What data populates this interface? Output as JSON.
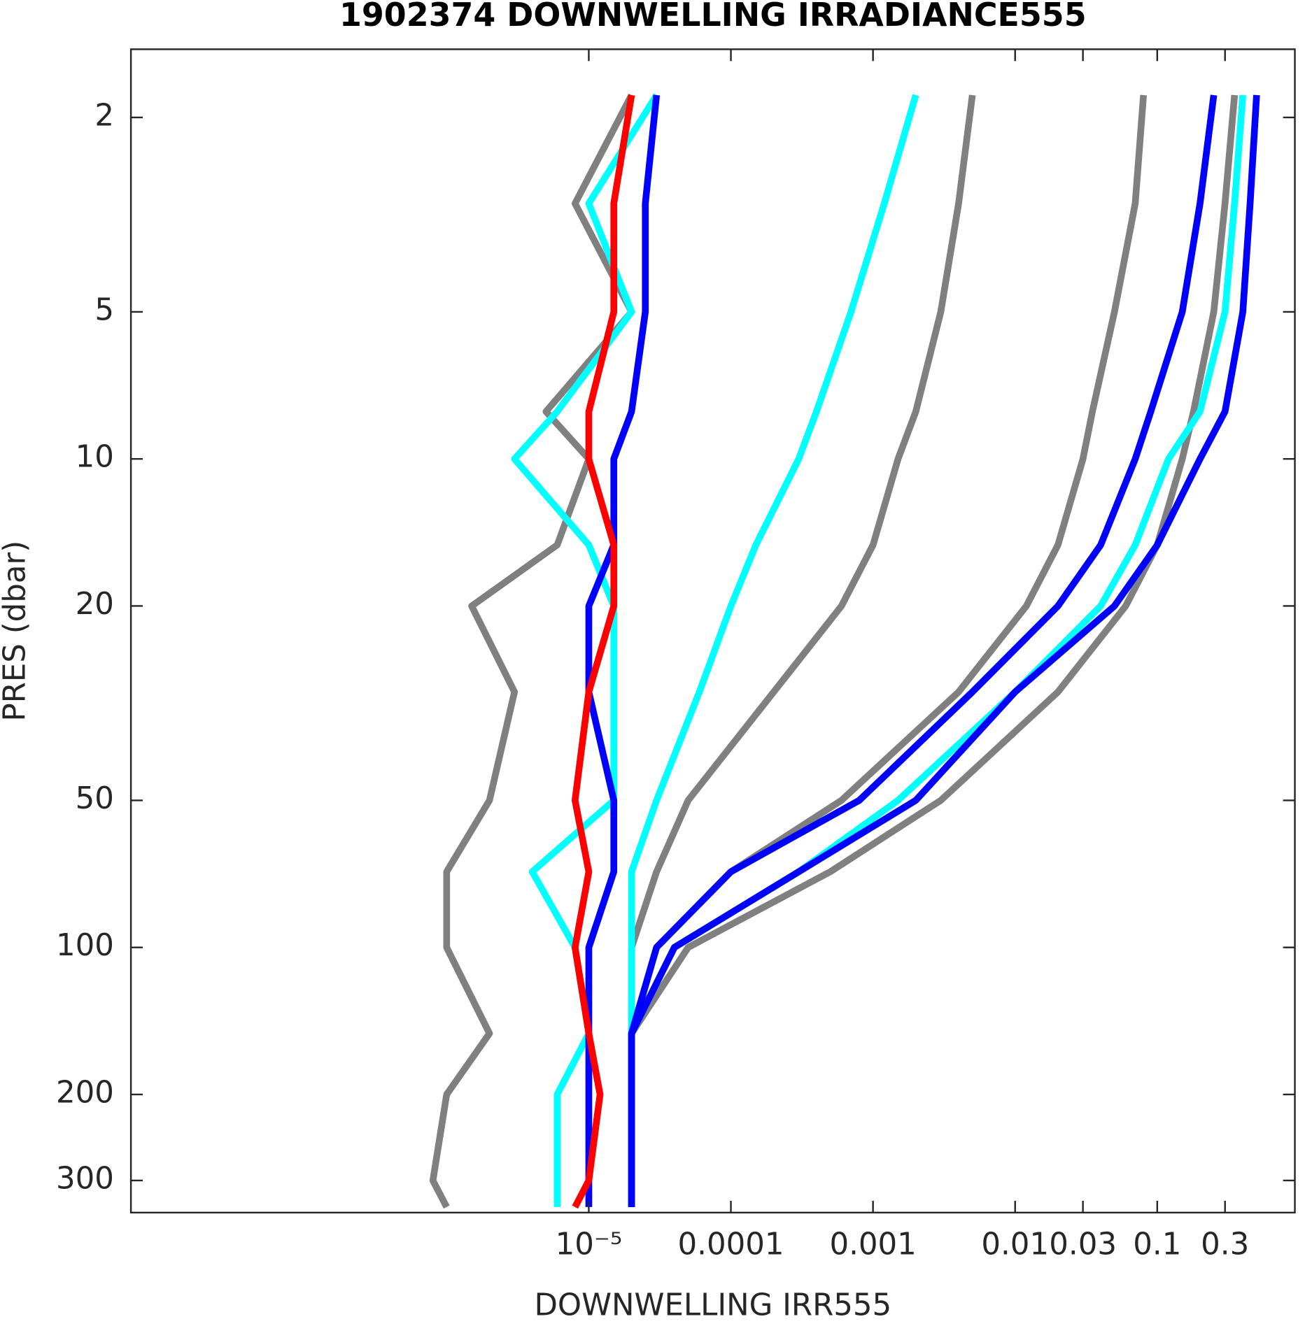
{
  "chart_data": {
    "type": "line",
    "title": "1902374  DOWNWELLING IRRADIANCE555",
    "xlabel": "DOWNWELLING IRR555",
    "ylabel": "PRES (dbar)",
    "xscale": "log",
    "yscale": "log",
    "yreverse": true,
    "xlim": [
      6e-09,
      0.93
    ],
    "ylim": [
      1.45,
      349
    ],
    "xticks": [
      {
        "value": 1e-05,
        "label": "10⁻⁵"
      },
      0.0001,
      0.001,
      0.01,
      0.03,
      0.1,
      0.3
    ],
    "yticks": [
      2,
      5,
      10,
      20,
      50,
      100,
      200,
      300
    ],
    "pressure": [
      1.8,
      3,
      5,
      8,
      10,
      15,
      20,
      30,
      50,
      70,
      100,
      150,
      200,
      300,
      340
    ],
    "series": [
      {
        "color": "#808080",
        "values": [
          0.35,
          0.3,
          0.25,
          0.18,
          0.15,
          0.1,
          0.06,
          0.02,
          0.003,
          0.0005,
          5e-05,
          2e-05,
          2e-05,
          2e-05,
          2e-05
        ]
      },
      {
        "color": "#808080",
        "values": [
          0.08,
          0.07,
          0.05,
          0.035,
          0.03,
          0.02,
          0.012,
          0.004,
          0.0006,
          0.0001,
          3e-05,
          2e-05,
          2e-05,
          2e-05,
          2e-05
        ]
      },
      {
        "color": "#808080",
        "values": [
          0.005,
          0.004,
          0.003,
          0.002,
          0.0015,
          0.001,
          0.0006,
          0.0002,
          5e-05,
          3e-05,
          2e-05,
          2e-05,
          2e-05,
          2e-05,
          2e-05
        ]
      },
      {
        "color": "#808080",
        "values": [
          2e-05,
          8e-06,
          2e-05,
          5e-06,
          1e-05,
          6e-06,
          1.5e-06,
          3e-06,
          2e-06,
          1e-06,
          1e-06,
          2e-06,
          1e-06,
          8e-07,
          1e-06
        ]
      },
      {
        "color": "#00ffff",
        "values": [
          0.4,
          0.35,
          0.3,
          0.2,
          0.12,
          0.07,
          0.04,
          0.01,
          0.0015,
          0.0003,
          4e-05,
          2e-05,
          2e-05,
          2e-05,
          2e-05
        ]
      },
      {
        "color": "#00ffff",
        "values": [
          0.002,
          0.0012,
          0.0007,
          0.0004,
          0.0003,
          0.00015,
          0.0001,
          6e-05,
          3e-05,
          2e-05,
          2e-05,
          2e-05,
          2e-05,
          2e-05,
          2e-05
        ]
      },
      {
        "color": "#00ffff",
        "values": [
          3e-05,
          1e-05,
          2e-05,
          6e-06,
          3e-06,
          1e-05,
          1.5e-05,
          1.5e-05,
          1.5e-05,
          4e-06,
          8e-06,
          1e-05,
          6e-06,
          6e-06,
          6e-06
        ]
      },
      {
        "color": "#0000ff",
        "values": [
          0.5,
          0.45,
          0.4,
          0.3,
          0.2,
          0.1,
          0.05,
          0.01,
          0.002,
          0.0003,
          4e-05,
          2e-05,
          2e-05,
          2e-05,
          2e-05
        ]
      },
      {
        "color": "#0000ff",
        "values": [
          0.25,
          0.2,
          0.15,
          0.09,
          0.07,
          0.04,
          0.02,
          0.005,
          0.0008,
          0.0001,
          3e-05,
          2e-05,
          2e-05,
          2e-05,
          2e-05
        ]
      },
      {
        "color": "#0000ff",
        "values": [
          3e-05,
          2.5e-05,
          2.5e-05,
          2e-05,
          1.5e-05,
          1.5e-05,
          1e-05,
          1e-05,
          1.5e-05,
          1.5e-05,
          1e-05,
          1e-05,
          1e-05,
          1e-05,
          1e-05
        ]
      },
      {
        "color": "#ff0000",
        "values": [
          2e-05,
          1.5e-05,
          1.5e-05,
          1e-05,
          1e-05,
          1.5e-05,
          1.5e-05,
          1e-05,
          8e-06,
          1e-05,
          8e-06,
          1e-05,
          1.2e-05,
          1e-05,
          8e-06
        ]
      }
    ]
  }
}
